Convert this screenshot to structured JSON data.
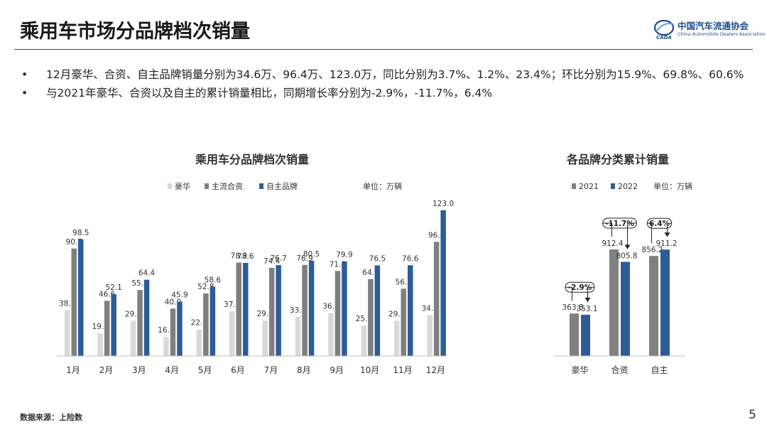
{
  "header": {
    "title": "乘用车市场分品牌档次销量",
    "logo_name": "中国汽车流通协会",
    "logo_en": "China Automobile Dealers Association",
    "logo_mark": "CADA"
  },
  "bullets": [
    "12月豪华、合资、自主品牌销量分别为34.6万、96.4万、123.0万，同比分别为3.7%、1.2%、23.4%；环比分别为15.9%、69.8%、60.6%",
    "与2021年豪华、合资以及自主的累计销量相比，同期增长率分别为-2.9%，-11.7%，6.4%"
  ],
  "footer": {
    "source": "数据来源：上险数",
    "page": "5"
  },
  "colors": {
    "luxury": "#d9d9d9",
    "joint": "#7f7f7f",
    "domestic": "#2e5c98",
    "y2021": "#808080",
    "y2022": "#2e5c98",
    "title_rule": "#1f4e8c"
  },
  "chart_data": [
    {
      "type": "bar",
      "title": "乘用车分品牌档次销量",
      "unit": "单位：万辆",
      "legend_position": "top",
      "grid": false,
      "categories": [
        "1月",
        "2月",
        "3月",
        "4月",
        "5月",
        "6月",
        "7月",
        "8月",
        "9月",
        "10月",
        "11月",
        "12月"
      ],
      "series": [
        {
          "name": "豪华",
          "values": [
            38.6,
            19.2,
            29.8,
            16.1,
            22.4,
            37.7,
            29.9,
            33.1,
            36.3,
            25.7,
            29.8,
            34.6
          ]
        },
        {
          "name": "主流合资",
          "values": [
            90.7,
            46.6,
            55.7,
            40.0,
            52.8,
            78.9,
            74.4,
            76.9,
            71.8,
            64.9,
            56.8,
            96.4
          ]
        },
        {
          "name": "自主品牌",
          "values": [
            98.5,
            52.1,
            64.4,
            45.9,
            58.6,
            78.6,
            76.7,
            80.5,
            79.9,
            76.5,
            76.6,
            123.0
          ]
        }
      ],
      "ylim": [
        0,
        130
      ]
    },
    {
      "type": "bar",
      "title": "各品牌分类累计销量",
      "unit": "单位：万辆",
      "legend_position": "top",
      "grid": false,
      "categories": [
        "豪华",
        "合资",
        "自主"
      ],
      "series": [
        {
          "name": "2021",
          "values": [
            363.8,
            912.4,
            856.2
          ]
        },
        {
          "name": "2022",
          "values": [
            353.1,
            805.8,
            911.2
          ]
        }
      ],
      "growth_labels": [
        "-2.9%",
        "-11.7%",
        "6.4%"
      ],
      "ylim": [
        0,
        1000
      ]
    }
  ]
}
